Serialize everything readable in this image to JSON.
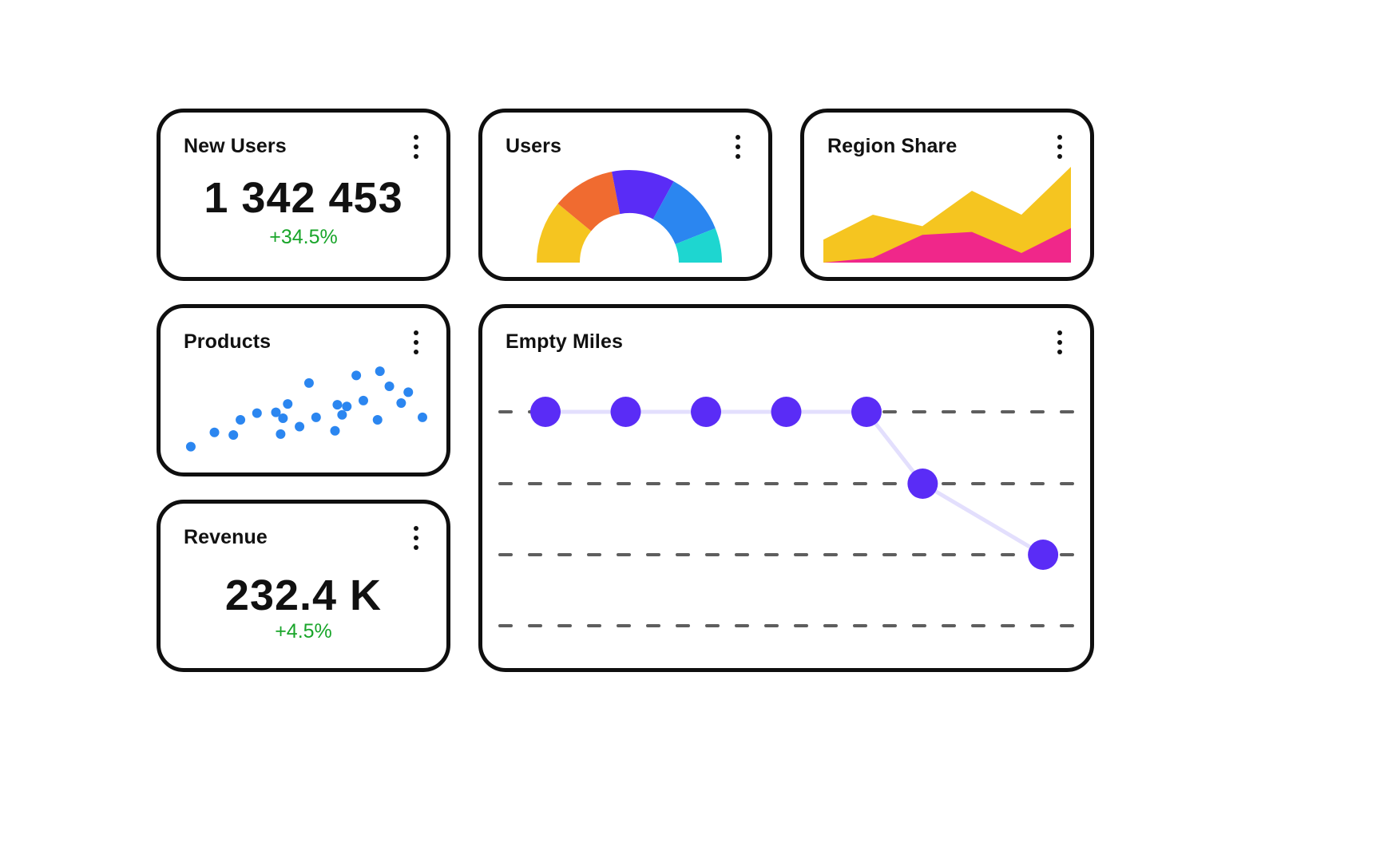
{
  "colors": {
    "accent": "#5a2cf6",
    "positive": "#19a52a",
    "scatter": "#2b86f0",
    "dash": "#5e5e5e",
    "track": "#e3dffd"
  },
  "menu_icon": "kebab-icon",
  "new_users": {
    "title": "New Users",
    "value": "1 342 453",
    "delta": "+34.5%"
  },
  "users": {
    "title": "Users",
    "chart_data": {
      "type": "pie",
      "variant": "half-donut",
      "segments": [
        {
          "color": "#f5c520",
          "value": 1
        },
        {
          "color": "#f06b30",
          "value": 1
        },
        {
          "color": "#5a2cf6",
          "value": 1
        },
        {
          "color": "#2b86f0",
          "value": 1
        },
        {
          "color": "#1ed6d0",
          "value": 0.55
        }
      ]
    }
  },
  "region_share": {
    "title": "Region Share",
    "chart_data": {
      "type": "area",
      "x": [
        0,
        1,
        2,
        3,
        4,
        5
      ],
      "ylim": [
        0,
        100
      ],
      "series": [
        {
          "color": "#f5c520",
          "values": [
            24,
            50,
            38,
            75,
            50,
            100
          ]
        },
        {
          "color": "#f0278a",
          "values": [
            0,
            5,
            29,
            32,
            10,
            36
          ]
        }
      ]
    }
  },
  "products": {
    "title": "Products",
    "chart_data": {
      "type": "scatter",
      "xlim": [
        0,
        100
      ],
      "ylim": [
        0,
        100
      ],
      "points": [
        [
          2,
          7
        ],
        [
          12,
          24
        ],
        [
          20,
          21
        ],
        [
          23,
          39
        ],
        [
          30,
          47
        ],
        [
          38,
          48
        ],
        [
          40,
          22
        ],
        [
          41,
          41
        ],
        [
          43,
          58
        ],
        [
          48,
          31
        ],
        [
          52,
          83
        ],
        [
          55,
          42
        ],
        [
          63,
          26
        ],
        [
          64,
          57
        ],
        [
          66,
          45
        ],
        [
          68,
          55
        ],
        [
          72,
          92
        ],
        [
          75,
          62
        ],
        [
          81,
          39
        ],
        [
          82,
          97
        ],
        [
          86,
          79
        ],
        [
          91,
          59
        ],
        [
          94,
          72
        ],
        [
          100,
          42
        ]
      ]
    }
  },
  "revenue": {
    "title": "Revenue",
    "value": "232.4 K",
    "delta": "+4.5%"
  },
  "empty_miles": {
    "title": "Empty Miles",
    "chart_data": {
      "type": "line",
      "levels": 4,
      "x": [
        0,
        1,
        2,
        3,
        4,
        4.7,
        6.2
      ],
      "y": [
        0,
        0,
        0,
        0,
        0,
        1,
        2
      ]
    }
  }
}
